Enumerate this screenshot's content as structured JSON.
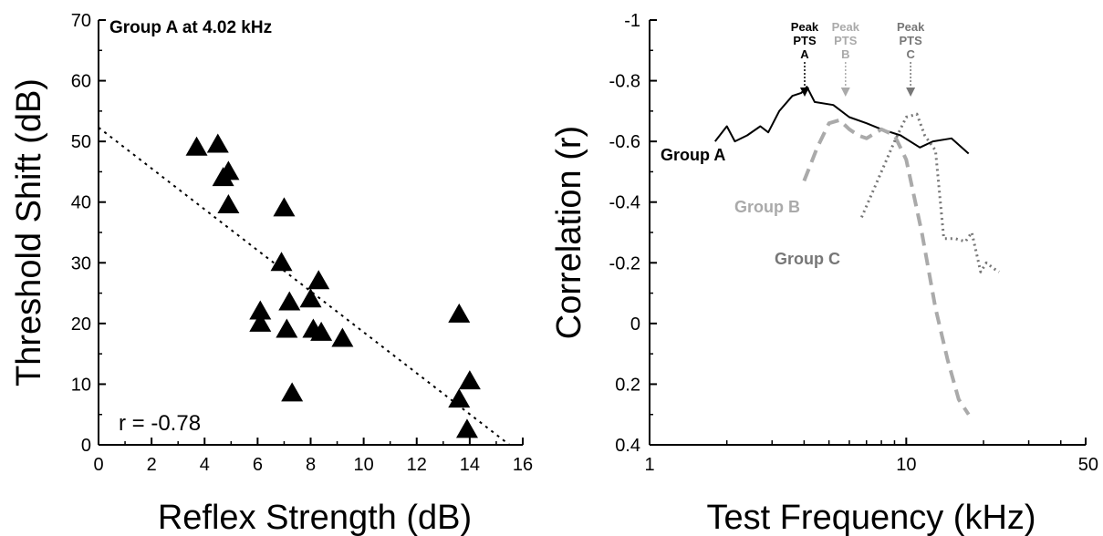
{
  "chart_data": [
    {
      "type": "scatter",
      "title": "Group A at 4.02 kHz",
      "xlabel": "Reflex Strength (dB)",
      "ylabel": "Threshold Shift (dB)",
      "xlim": [
        0,
        16
      ],
      "ylim": [
        0,
        70
      ],
      "xticks": [
        0,
        2,
        4,
        6,
        8,
        10,
        12,
        14,
        16
      ],
      "yticks": [
        0,
        10,
        20,
        30,
        40,
        50,
        60,
        70
      ],
      "marker": "triangle",
      "points": [
        {
          "x": 3.7,
          "y": 49
        },
        {
          "x": 4.5,
          "y": 49.5
        },
        {
          "x": 4.7,
          "y": 44
        },
        {
          "x": 4.9,
          "y": 45
        },
        {
          "x": 4.9,
          "y": 39.5
        },
        {
          "x": 7.0,
          "y": 39
        },
        {
          "x": 6.9,
          "y": 30
        },
        {
          "x": 8.3,
          "y": 27
        },
        {
          "x": 6.1,
          "y": 22
        },
        {
          "x": 7.2,
          "y": 23.5
        },
        {
          "x": 8.0,
          "y": 24
        },
        {
          "x": 6.1,
          "y": 20
        },
        {
          "x": 7.1,
          "y": 19
        },
        {
          "x": 8.1,
          "y": 19
        },
        {
          "x": 8.4,
          "y": 18.5
        },
        {
          "x": 9.2,
          "y": 17.5
        },
        {
          "x": 7.3,
          "y": 8.5
        },
        {
          "x": 13.6,
          "y": 21.5
        },
        {
          "x": 13.6,
          "y": 7.5
        },
        {
          "x": 14.0,
          "y": 10.5
        },
        {
          "x": 13.9,
          "y": 2.5
        }
      ],
      "fit_line": {
        "x": [
          0,
          15.5
        ],
        "y": [
          52.3,
          0
        ],
        "style": "dotted"
      },
      "annotations": [
        "r = -0.78"
      ]
    },
    {
      "type": "line",
      "xlabel": "Test Frequency (kHz)",
      "ylabel": "Correlation (r)",
      "x_scale": "log",
      "xlim": [
        1,
        50
      ],
      "ylim": [
        -1,
        0.4
      ],
      "y_inverted": true,
      "xtick_labels": [
        "1",
        "10",
        "50"
      ],
      "ytick_labels": [
        "-1",
        "-0.8",
        "-0.6",
        "-0.4",
        "-0.2",
        "0",
        "0.2",
        "0.4"
      ],
      "series": [
        {
          "name": "Group A",
          "color": "#000000",
          "style": "solid",
          "x": [
            1.8,
            2.0,
            2.15,
            2.4,
            2.7,
            2.9,
            3.2,
            3.6,
            3.9,
            4.1,
            4.4,
            5.2,
            6.0,
            7.0,
            8.0,
            9.5,
            11.3,
            12.7,
            15.0,
            17.5
          ],
          "y": [
            -0.6,
            -0.65,
            -0.6,
            -0.62,
            -0.65,
            -0.63,
            -0.7,
            -0.75,
            -0.76,
            -0.78,
            -0.73,
            -0.72,
            -0.68,
            -0.66,
            -0.64,
            -0.62,
            -0.58,
            -0.6,
            -0.61,
            -0.56
          ]
        },
        {
          "name": "Group B",
          "color": "#aaaaaa",
          "style": "dashed",
          "x": [
            4.0,
            4.5,
            5.0,
            5.5,
            6.0,
            6.5,
            7.0,
            8.0,
            9.0,
            10.0,
            11.5,
            13.0,
            14.5,
            16.0,
            17.5
          ],
          "y": [
            -0.47,
            -0.58,
            -0.66,
            -0.67,
            -0.64,
            -0.62,
            -0.61,
            -0.64,
            -0.62,
            -0.54,
            -0.3,
            -0.05,
            0.12,
            0.25,
            0.3
          ]
        },
        {
          "name": "Group C",
          "color": "#777777",
          "style": "dotted",
          "x": [
            6.7,
            8.0,
            9.0,
            10.0,
            11.0,
            11.8,
            13.0,
            14.0,
            15.5,
            17.0,
            18.0,
            19.5,
            20.5,
            22.0,
            23.0
          ],
          "y": [
            -0.35,
            -0.5,
            -0.6,
            -0.68,
            -0.69,
            -0.62,
            -0.57,
            -0.28,
            -0.28,
            -0.27,
            -0.3,
            -0.17,
            -0.2,
            -0.18,
            -0.17
          ]
        }
      ],
      "peaks": [
        {
          "lines": [
            "Peak",
            "PTS",
            "A"
          ],
          "x": 4.02,
          "color": "#000000"
        },
        {
          "lines": [
            "Peak",
            "PTS",
            "B"
          ],
          "x": 5.8,
          "color": "#aaaaaa"
        },
        {
          "lines": [
            "Peak",
            "PTS",
            "C"
          ],
          "x": 10.4,
          "color": "#777777"
        }
      ]
    }
  ]
}
